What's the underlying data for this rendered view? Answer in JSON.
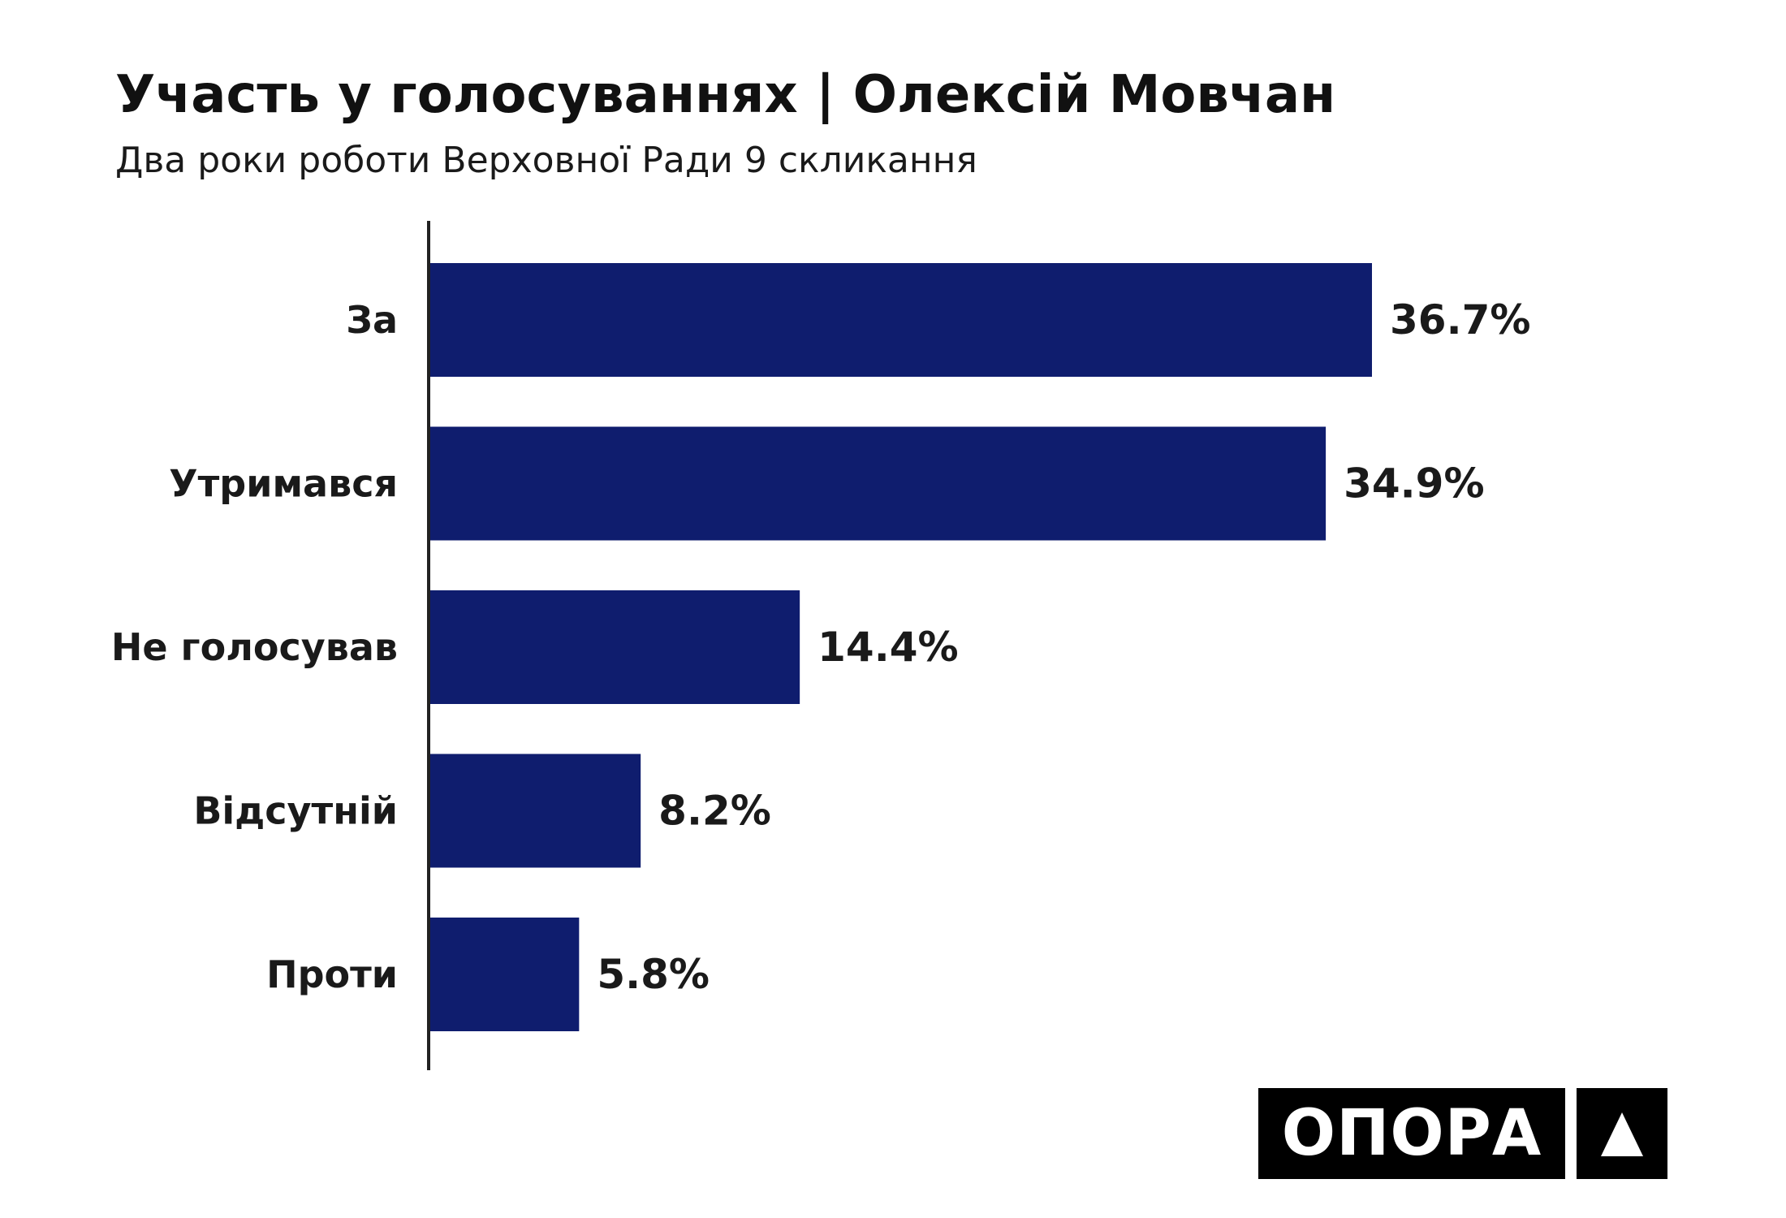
{
  "header": {
    "title": "Участь у голосуваннях | Олексій Мовчан",
    "subtitle": "Два роки роботи Верховної Ради 9 скликання"
  },
  "logo": {
    "text": "ОПОРА",
    "mark_icon": "triangle-icon"
  },
  "colors": {
    "bar": "#0f1d6e",
    "axis": "#222222",
    "text": "#1a1a1a",
    "logo_bg": "#000000"
  },
  "chart_data": {
    "type": "bar",
    "orientation": "horizontal",
    "title": "Участь у голосуваннях | Олексій Мовчан",
    "subtitle": "Два роки роботи Верховної Ради 9 скликання",
    "categories": [
      "За",
      "Утримався",
      "Не голосував",
      "Відсутній",
      "Проти"
    ],
    "values": [
      36.7,
      34.9,
      14.4,
      8.2,
      5.8
    ],
    "value_labels": [
      "36.7%",
      "34.9%",
      "14.4%",
      "8.2%",
      "5.8%"
    ],
    "unit": "%",
    "xlim": [
      0,
      40
    ],
    "grid": false,
    "legend": "none"
  }
}
